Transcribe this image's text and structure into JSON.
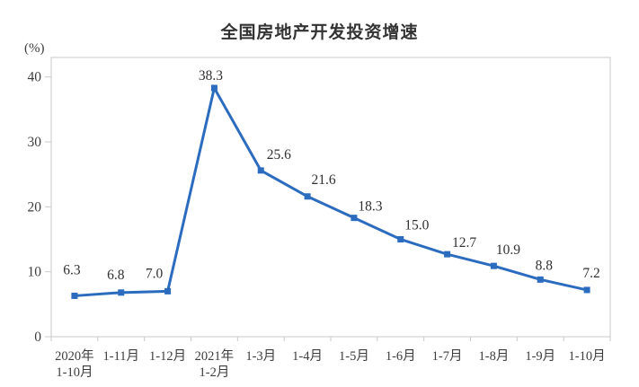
{
  "title": "全国房地产开发投资增速",
  "colors": {
    "line": "#2b6cbf",
    "marker": "#2b6cbf",
    "axis": "#c9c9c9",
    "tick_text": "#3d3d3d",
    "data_label": "#303030",
    "title_text": "#333333"
  },
  "chart_data": {
    "type": "line",
    "title": "全国房地产开发投资增速",
    "xlabel": "",
    "ylabel": "(%)",
    "categories": [
      "2020年\n1-10月",
      "1-11月",
      "1-12月",
      "2021年\n1-2月",
      "1-3月",
      "1-4月",
      "1-5月",
      "1-6月",
      "1-7月",
      "1-8月",
      "1-9月",
      "1-10月"
    ],
    "values": [
      6.3,
      6.8,
      7.0,
      38.3,
      25.6,
      21.6,
      18.3,
      15.0,
      12.7,
      10.9,
      8.8,
      7.2
    ],
    "value_labels": [
      "6.3",
      "6.8",
      "7.0",
      "38.3",
      "25.6",
      "21.6",
      "18.3",
      "15.0",
      "12.7",
      "10.9",
      "8.8",
      "7.2"
    ],
    "ylim": [
      0,
      43
    ],
    "yticks": [
      0,
      10,
      20,
      30,
      40
    ],
    "grid": false,
    "legend": "none",
    "marker": "square",
    "line_color": "#2b6cbf"
  }
}
